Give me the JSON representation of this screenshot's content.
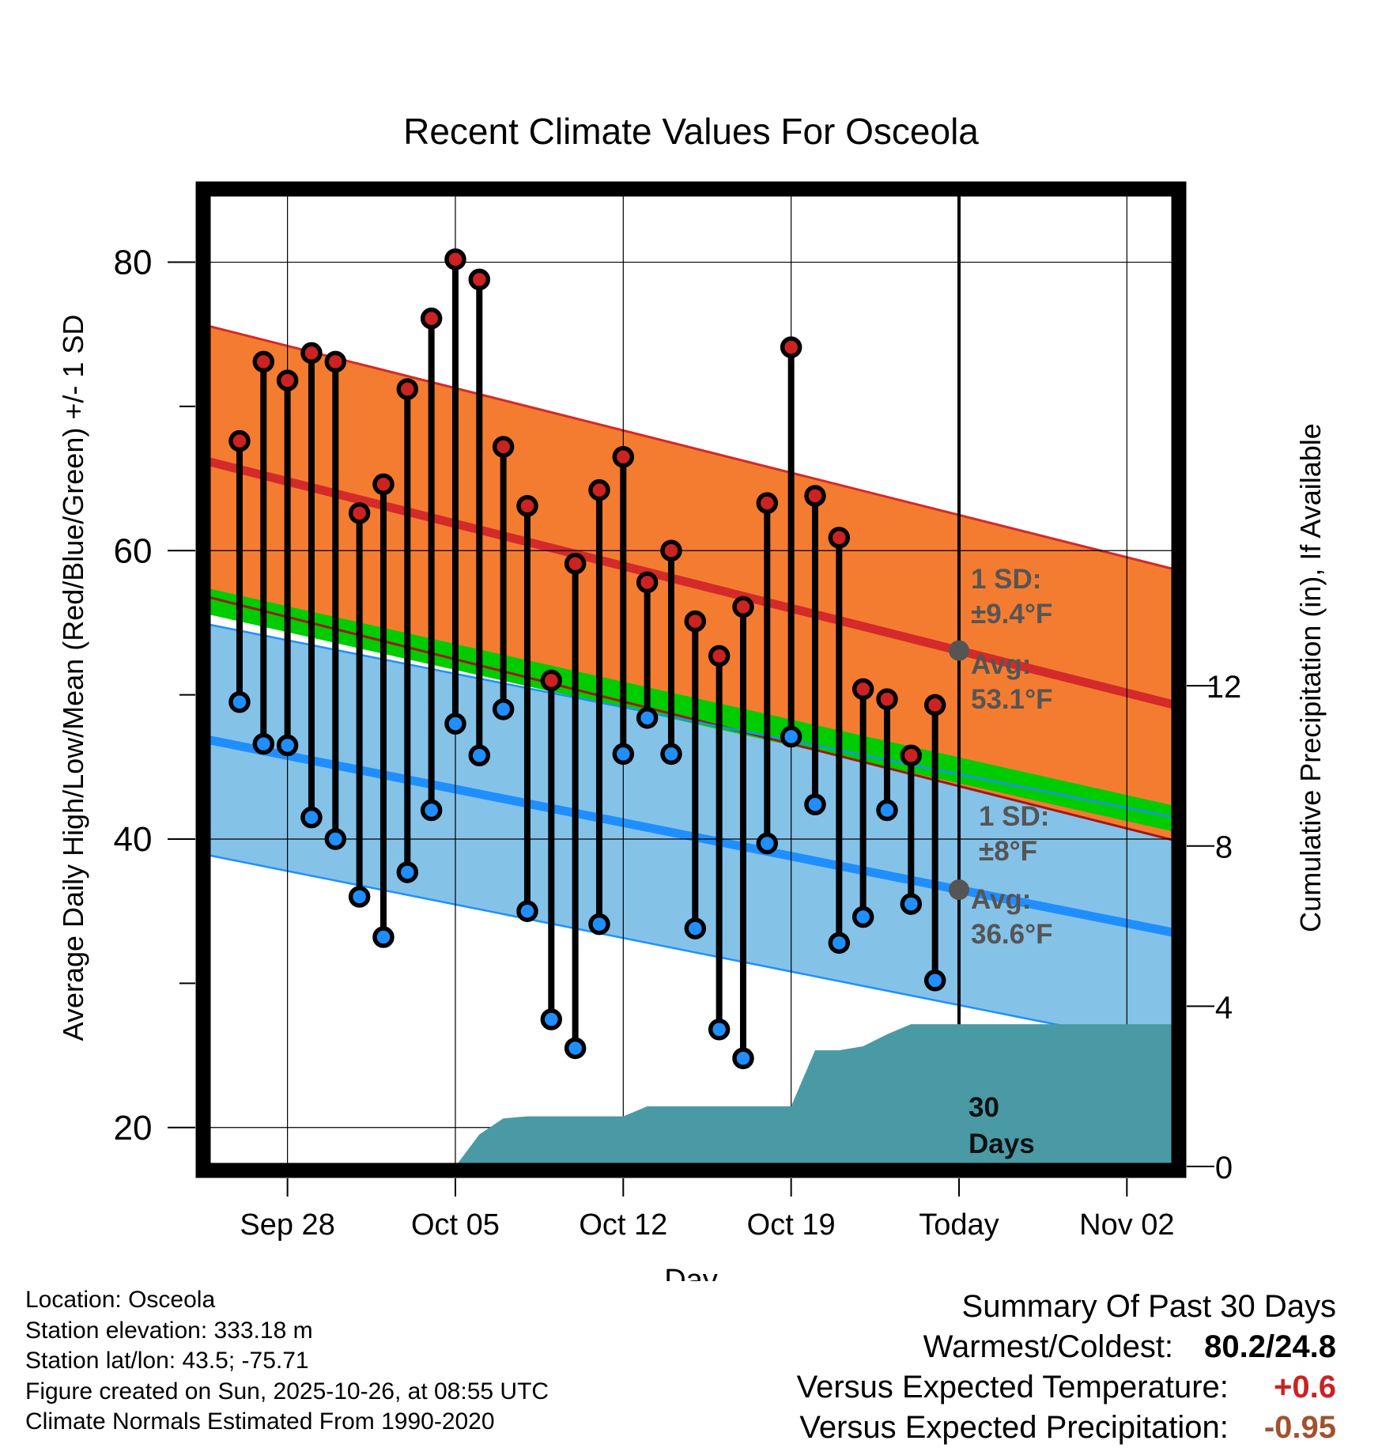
{
  "title": "Recent Climate Values For Osceola",
  "chart_data": {
    "type": "line",
    "title": "Recent Climate Values For Osceola",
    "xlabel": "Day",
    "ylabel": "Average Daily High/Low/Mean (Red/Blue/Green) +/- 1 SD",
    "ylabel_right": "Cumulative Precipitation (in), If Available",
    "ylim": [
      17.3,
      84.8
    ],
    "ylim_right": [
      0,
      24.3
    ],
    "x_ticks": [
      {
        "day": 3,
        "label": "Sep 28"
      },
      {
        "day": 10,
        "label": "Oct 05"
      },
      {
        "day": 17,
        "label": "Oct 12"
      },
      {
        "day": 24,
        "label": "Oct 19"
      },
      {
        "day": 31,
        "label": "Today"
      },
      {
        "day": 38,
        "label": "Nov 02"
      }
    ],
    "xlim": [
      -0.35,
      40.0
    ],
    "y_ticks": [
      20,
      40,
      60,
      80
    ],
    "y_minor_ticks": [
      30,
      50,
      70
    ],
    "y_ticks_right": [
      0,
      4,
      8,
      12
    ],
    "today_day": 31,
    "normal_high": {
      "start": 66.2,
      "end": 49.3,
      "sd": 9.4,
      "start_day": -0.35,
      "end_day": 40.0
    },
    "normal_low": {
      "start": 46.9,
      "end": 33.5,
      "sd": 8.0,
      "start_day": -0.35,
      "end_day": 40.0
    },
    "normal_mean": {
      "start": 56.5,
      "end": 41.4,
      "start_day": -0.35,
      "end_day": 40.0
    },
    "series": [
      {
        "name": "Daily High",
        "color": "#cc2222",
        "days": [
          1,
          2,
          3,
          4,
          5,
          6,
          7,
          8,
          9,
          10,
          11,
          12,
          13,
          14,
          15,
          16,
          17,
          18,
          19,
          20,
          21,
          22,
          23,
          24,
          25,
          26,
          27,
          28,
          29,
          30
        ],
        "values": [
          67.6,
          73.1,
          71.8,
          73.7,
          73.1,
          62.6,
          64.6,
          71.2,
          76.1,
          80.2,
          78.8,
          67.2,
          63.1,
          51.0,
          59.1,
          64.2,
          66.5,
          57.8,
          60.0,
          55.1,
          52.7,
          56.1,
          63.3,
          74.1,
          63.8,
          60.9,
          50.4,
          49.7,
          45.8,
          49.3
        ]
      },
      {
        "name": "Daily Low",
        "color": "#1f8fff",
        "days": [
          1,
          2,
          3,
          4,
          5,
          6,
          7,
          8,
          9,
          10,
          11,
          12,
          13,
          14,
          15,
          16,
          17,
          18,
          19,
          20,
          21,
          22,
          23,
          24,
          25,
          26,
          27,
          28,
          29,
          30
        ],
        "values": [
          49.5,
          46.6,
          46.5,
          41.5,
          40.0,
          36.0,
          33.2,
          37.7,
          42.0,
          48.0,
          45.8,
          49.0,
          35.0,
          27.5,
          25.5,
          34.1,
          45.9,
          48.4,
          45.9,
          33.8,
          26.8,
          24.8,
          39.7,
          47.1,
          42.4,
          32.8,
          34.6,
          42.0,
          35.5,
          30.2
        ]
      },
      {
        "name": "Cumulative Precipitation",
        "color": "#4a9aa5",
        "axis": "right",
        "days": [
          10.0,
          11.0,
          12.0,
          13.0,
          14.0,
          15.0,
          16.0,
          17.0,
          18.0,
          19.0,
          20.0,
          21.0,
          22.0,
          23.0,
          24.0,
          25.0,
          26.0,
          27.0,
          28.0,
          29.0,
          40.0
        ],
        "values": [
          0.0,
          0.8,
          1.2,
          1.25,
          1.25,
          1.25,
          1.25,
          1.25,
          1.5,
          1.5,
          1.5,
          1.5,
          1.5,
          1.5,
          1.5,
          2.9,
          2.9,
          3.0,
          3.3,
          3.55,
          3.55
        ]
      }
    ],
    "annotations": {
      "high_sd": "1 SD:",
      "high_sd_value": "±9.4°F",
      "high_avg": "Avg:",
      "high_avg_value": "53.1°F",
      "low_sd": "1 SD:",
      "low_sd_value": "±8°F",
      "low_avg": "Avg:",
      "low_avg_value": "36.6°F",
      "days_line1": "30",
      "days_line2": "Days"
    },
    "colors": {
      "high_band": "#f47c30",
      "high_line": "#d42a2a",
      "low_band": "#85c2e8",
      "low_line": "#1f8fff",
      "mean_band": "#00cc00",
      "overlap": "#a01818",
      "precip": "#4a9aa5"
    }
  },
  "footer": {
    "location": "Location: Osceola",
    "elevation": "Station elevation: 333.18 m",
    "latlon": "Station lat/lon: 43.5; -75.71",
    "created": "Figure created on Sun, 2025-10-26, at 08:55 UTC",
    "normals": "Climate Normals Estimated From 1990-2020"
  },
  "summary": {
    "heading": "Summary Of Past 30 Days",
    "warmest_label": "Warmest/Coldest:",
    "warmest_value": "80.2/24.8",
    "temp_label": "Versus Expected Temperature:",
    "temp_value": "+0.6",
    "temp_color": "#cc2222",
    "precip_label": "Versus Expected Precipitation:",
    "precip_value": "-0.95",
    "precip_color": "#a0522d"
  }
}
